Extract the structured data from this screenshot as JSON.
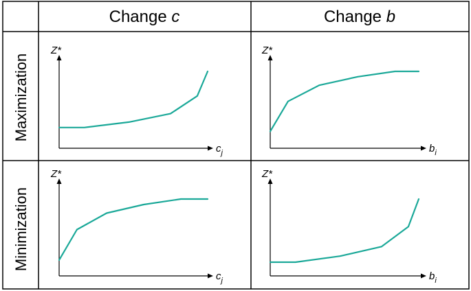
{
  "columns": [
    {
      "prefix": "Change ",
      "var": "c"
    },
    {
      "prefix": "Change ",
      "var": "b"
    }
  ],
  "rows": [
    "Maximization",
    "Minimization"
  ],
  "colors": {
    "curve": "#1aa898",
    "line": "#000000"
  },
  "chart_data": [
    {
      "type": "line",
      "panel": "Maximization / Change c",
      "ylabel": "Z*",
      "xlabel": {
        "main": "c",
        "sub": "j"
      },
      "shape": "increasing-convex",
      "series": [
        {
          "x": [
            0,
            0.17,
            0.47,
            0.75,
            0.93,
            1.0
          ],
          "y": [
            0.27,
            0.27,
            0.34,
            0.45,
            0.68,
            1.0
          ]
        }
      ]
    },
    {
      "type": "line",
      "panel": "Maximization / Change b",
      "ylabel": "Z*",
      "xlabel": {
        "main": "b",
        "sub": "i"
      },
      "shape": "increasing-concave",
      "series": [
        {
          "x": [
            0,
            0.12,
            0.33,
            0.59,
            0.84,
            1.0
          ],
          "y": [
            0.22,
            0.61,
            0.82,
            0.93,
            1.0,
            1.0
          ]
        }
      ]
    },
    {
      "type": "line",
      "panel": "Minimization / Change c",
      "ylabel": "Z*",
      "xlabel": {
        "main": "c",
        "sub": "j"
      },
      "shape": "increasing-concave",
      "series": [
        {
          "x": [
            0,
            0.12,
            0.32,
            0.57,
            0.82,
            1.0
          ],
          "y": [
            0.22,
            0.61,
            0.82,
            0.93,
            1.0,
            1.0
          ]
        }
      ]
    },
    {
      "type": "line",
      "panel": "Minimization / Change b",
      "ylabel": "Z*",
      "xlabel": {
        "main": "b",
        "sub": "i"
      },
      "shape": "increasing-convex",
      "series": [
        {
          "x": [
            0,
            0.17,
            0.47,
            0.75,
            0.93,
            1.0
          ],
          "y": [
            0.27,
            0.27,
            0.34,
            0.45,
            0.68,
            1.0
          ]
        }
      ]
    }
  ]
}
